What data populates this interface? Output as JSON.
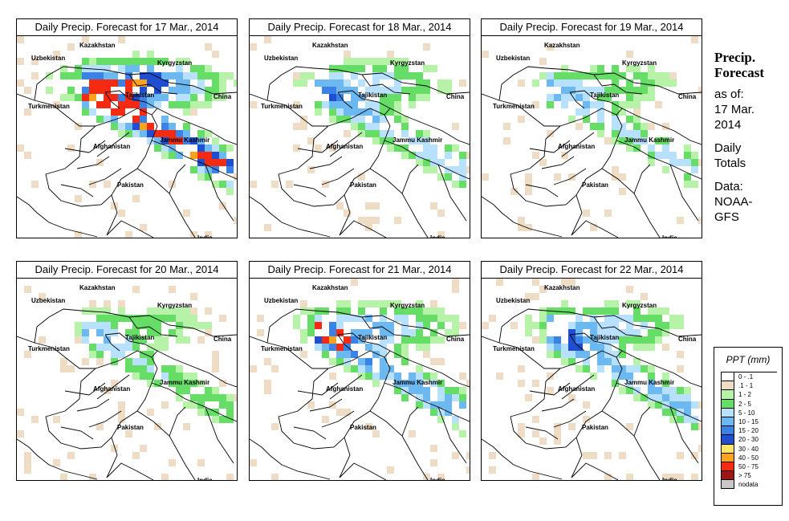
{
  "panels": [
    {
      "title": "Daily Precip. Forecast for  17 Mar., 2014",
      "intensity": 1.0
    },
    {
      "title": "Daily Precip. Forecast for  18 Mar., 2014",
      "intensity": 0.55
    },
    {
      "title": "Daily Precip. Forecast for  19 Mar., 2014",
      "intensity": 0.45
    },
    {
      "title": "Daily Precip. Forecast for  20 Mar., 2014",
      "intensity": 0.4
    },
    {
      "title": "Daily Precip. Forecast for  21 Mar., 2014",
      "intensity": 0.7
    },
    {
      "title": "Daily Precip. Forecast for  22 Mar., 2014",
      "intensity": 0.6
    }
  ],
  "map_labels": {
    "kazakhstan": "Kazakhstan",
    "uzbekistan": "Uzbekistan",
    "kyrgyzstan": "Kyrgyzstan",
    "tajikistan": "Tajikistan",
    "china": "China",
    "turkmenistan": "Turkmenistan",
    "afghanistan": "Afghanistan",
    "jammu_kashmir": "Jammu Kashmir",
    "pakistan": "Pakistan",
    "india": "India"
  },
  "side": {
    "title_line1": "Precip.",
    "title_line2": "Forecast",
    "asof_1": "as of:",
    "asof_2": "17 Mar.",
    "asof_3": "2014",
    "totals_1": "Daily",
    "totals_2": "Totals",
    "data_1": "Data:",
    "data_2": "NOAA-",
    "data_3": "GFS"
  },
  "legend": {
    "title": "PPT (mm)",
    "items": [
      {
        "label": "0 - .1",
        "color": "#ffffff"
      },
      {
        "label": ".1 - 1",
        "color": "#eedcc4"
      },
      {
        "label": "1 - 2",
        "color": "#b6f2a8"
      },
      {
        "label": "2 - 5",
        "color": "#66dd66"
      },
      {
        "label": "5 - 10",
        "color": "#b7e1ff"
      },
      {
        "label": "10 - 15",
        "color": "#6cb8f0"
      },
      {
        "label": "15 - 20",
        "color": "#3b82e6"
      },
      {
        "label": "20 - 30",
        "color": "#1f4fd0"
      },
      {
        "label": "30 - 40",
        "color": "#ffe66a"
      },
      {
        "label": "40 - 50",
        "color": "#ffa21c"
      },
      {
        "label": "50 - 75",
        "color": "#f42a12"
      },
      {
        "label": "> 75",
        "color": "#a01414"
      },
      {
        "label": "nodata",
        "color": "#c8c8c8"
      }
    ]
  }
}
